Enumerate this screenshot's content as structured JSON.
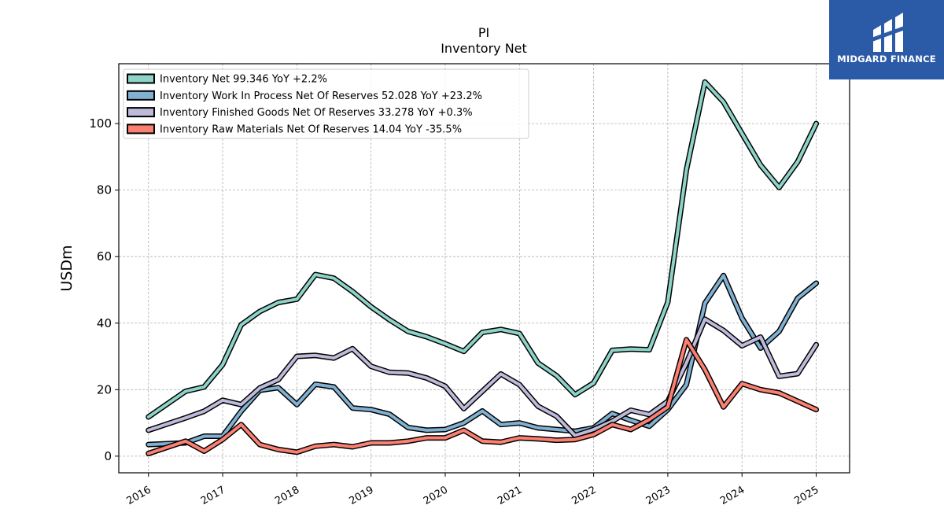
{
  "chart_data": {
    "type": "line",
    "title": "PI",
    "subtitle": "Inventory Net",
    "ylabel": "USDm",
    "xlabel": "",
    "ylim": [
      -5,
      118
    ],
    "xlim": [
      2015.6,
      2025.45
    ],
    "x_ticks": [
      {
        "value": 2016,
        "label": "2016"
      },
      {
        "value": 2017,
        "label": "2017"
      },
      {
        "value": 2018,
        "label": "2018"
      },
      {
        "value": 2019,
        "label": "2019"
      },
      {
        "value": 2020,
        "label": "2020"
      },
      {
        "value": 2021,
        "label": "2021"
      },
      {
        "value": 2022,
        "label": "2022"
      },
      {
        "value": 2023,
        "label": "2023"
      },
      {
        "value": 2024,
        "label": "2024"
      },
      {
        "value": 2025,
        "label": "2025"
      }
    ],
    "y_ticks": [
      0,
      20,
      40,
      60,
      80,
      100
    ],
    "grid": true,
    "legend_position": "top-left",
    "series": [
      {
        "name": "Inventory Net",
        "legend_label": "Inventory Net  99.346 YoY +2.2%",
        "color": "#8dd3c7",
        "points": [
          [
            2016.0,
            11.8
          ],
          [
            2016.5,
            19.5
          ],
          [
            2016.75,
            20.8
          ],
          [
            2017.0,
            27.5
          ],
          [
            2017.25,
            39.5
          ],
          [
            2017.5,
            43.5
          ],
          [
            2017.75,
            46.2
          ],
          [
            2018.0,
            47.2
          ],
          [
            2018.25,
            54.6
          ],
          [
            2018.5,
            53.5
          ],
          [
            2018.75,
            49.5
          ],
          [
            2019.0,
            44.9
          ],
          [
            2019.25,
            41.0
          ],
          [
            2019.5,
            37.5
          ],
          [
            2019.75,
            35.9
          ],
          [
            2020.0,
            33.8
          ],
          [
            2020.25,
            31.5
          ],
          [
            2020.5,
            37.2
          ],
          [
            2020.75,
            38.1
          ],
          [
            2021.0,
            36.9
          ],
          [
            2021.25,
            28.0
          ],
          [
            2021.5,
            24.2
          ],
          [
            2021.75,
            18.5
          ],
          [
            2022.0,
            22.0
          ],
          [
            2022.25,
            31.8
          ],
          [
            2022.5,
            32.2
          ],
          [
            2022.75,
            32.0
          ],
          [
            2023.0,
            46.3
          ],
          [
            2023.25,
            86.0
          ],
          [
            2023.5,
            112.5
          ],
          [
            2023.75,
            106.5
          ],
          [
            2024.0,
            97.0
          ],
          [
            2024.25,
            87.5
          ],
          [
            2024.5,
            80.8
          ],
          [
            2024.75,
            88.5
          ],
          [
            2025.0,
            100.0
          ]
        ]
      },
      {
        "name": "Inventory Work In Process Net Of Reserves",
        "legend_label": "Inventory Work In Process Net Of Reserves  52.028 YoY +23.2%",
        "color": "#80b1d3",
        "points": [
          [
            2016.0,
            3.5
          ],
          [
            2016.5,
            4.0
          ],
          [
            2016.75,
            6.0
          ],
          [
            2017.0,
            6.0
          ],
          [
            2017.25,
            13.5
          ],
          [
            2017.5,
            19.8
          ],
          [
            2017.75,
            20.6
          ],
          [
            2018.0,
            15.5
          ],
          [
            2018.25,
            21.6
          ],
          [
            2018.5,
            20.8
          ],
          [
            2018.75,
            14.5
          ],
          [
            2019.0,
            14.0
          ],
          [
            2019.25,
            12.6
          ],
          [
            2019.5,
            8.6
          ],
          [
            2019.75,
            7.8
          ],
          [
            2020.0,
            8.0
          ],
          [
            2020.25,
            10.0
          ],
          [
            2020.5,
            13.6
          ],
          [
            2020.75,
            9.5
          ],
          [
            2021.0,
            10.0
          ],
          [
            2021.25,
            8.5
          ],
          [
            2021.5,
            8.0
          ],
          [
            2021.75,
            7.5
          ],
          [
            2022.0,
            8.5
          ],
          [
            2022.25,
            12.8
          ],
          [
            2022.5,
            10.8
          ],
          [
            2022.75,
            9.0
          ],
          [
            2023.0,
            14.0
          ],
          [
            2023.25,
            21.5
          ],
          [
            2023.5,
            46.0
          ],
          [
            2023.75,
            54.3
          ],
          [
            2024.0,
            41.5
          ],
          [
            2024.25,
            32.5
          ],
          [
            2024.5,
            37.5
          ],
          [
            2024.75,
            47.5
          ],
          [
            2025.0,
            52.0
          ]
        ]
      },
      {
        "name": "Inventory Finished Goods Net Of Reserves",
        "legend_label": "Inventory Finished Goods Net Of Reserves  33.278 YoY +0.3%",
        "color": "#bebada",
        "points": [
          [
            2016.0,
            7.8
          ],
          [
            2016.5,
            11.5
          ],
          [
            2016.75,
            13.5
          ],
          [
            2017.0,
            16.8
          ],
          [
            2017.25,
            15.5
          ],
          [
            2017.5,
            20.5
          ],
          [
            2017.75,
            23.0
          ],
          [
            2018.0,
            30.0
          ],
          [
            2018.25,
            30.3
          ],
          [
            2018.5,
            29.5
          ],
          [
            2018.75,
            32.3
          ],
          [
            2019.0,
            27.0
          ],
          [
            2019.25,
            25.2
          ],
          [
            2019.5,
            25.0
          ],
          [
            2019.75,
            23.5
          ],
          [
            2020.0,
            21.0
          ],
          [
            2020.25,
            14.3
          ],
          [
            2020.5,
            19.5
          ],
          [
            2020.75,
            24.7
          ],
          [
            2021.0,
            21.5
          ],
          [
            2021.25,
            15.0
          ],
          [
            2021.5,
            12.0
          ],
          [
            2021.75,
            6.2
          ],
          [
            2022.0,
            8.0
          ],
          [
            2022.25,
            10.5
          ],
          [
            2022.5,
            13.8
          ],
          [
            2022.75,
            12.5
          ],
          [
            2023.0,
            16.5
          ],
          [
            2023.25,
            28.0
          ],
          [
            2023.5,
            41.2
          ],
          [
            2023.75,
            37.8
          ],
          [
            2024.0,
            33.2
          ],
          [
            2024.25,
            35.8
          ],
          [
            2024.5,
            24.0
          ],
          [
            2024.75,
            24.8
          ],
          [
            2025.0,
            33.5
          ]
        ]
      },
      {
        "name": "Inventory Raw Materials Net Of Reserves",
        "legend_label": "Inventory Raw Materials Net Of Reserves  14.04 YoY -35.5%",
        "color": "#fb8072",
        "points": [
          [
            2016.0,
            0.8
          ],
          [
            2016.5,
            4.5
          ],
          [
            2016.75,
            1.5
          ],
          [
            2017.0,
            5.0
          ],
          [
            2017.25,
            9.5
          ],
          [
            2017.5,
            3.5
          ],
          [
            2017.75,
            2.0
          ],
          [
            2018.0,
            1.2
          ],
          [
            2018.25,
            3.0
          ],
          [
            2018.5,
            3.5
          ],
          [
            2018.75,
            2.8
          ],
          [
            2019.0,
            4.0
          ],
          [
            2019.25,
            4.0
          ],
          [
            2019.5,
            4.5
          ],
          [
            2019.75,
            5.5
          ],
          [
            2020.0,
            5.5
          ],
          [
            2020.25,
            7.8
          ],
          [
            2020.5,
            4.5
          ],
          [
            2020.75,
            4.2
          ],
          [
            2021.0,
            5.5
          ],
          [
            2021.25,
            5.2
          ],
          [
            2021.5,
            4.8
          ],
          [
            2021.75,
            5.0
          ],
          [
            2022.0,
            6.5
          ],
          [
            2022.25,
            9.5
          ],
          [
            2022.5,
            8.0
          ],
          [
            2022.75,
            11.0
          ],
          [
            2023.0,
            14.8
          ],
          [
            2023.25,
            35.0
          ],
          [
            2023.5,
            26.0
          ],
          [
            2023.75,
            14.8
          ],
          [
            2024.0,
            21.8
          ],
          [
            2024.25,
            20.0
          ],
          [
            2024.5,
            19.0
          ],
          [
            2024.75,
            16.5
          ],
          [
            2025.0,
            14.0
          ]
        ]
      }
    ]
  },
  "logo": {
    "text": "MIDGARD FINANCE",
    "background": "#2b5aa7",
    "icon": "midgard-logo-icon"
  }
}
